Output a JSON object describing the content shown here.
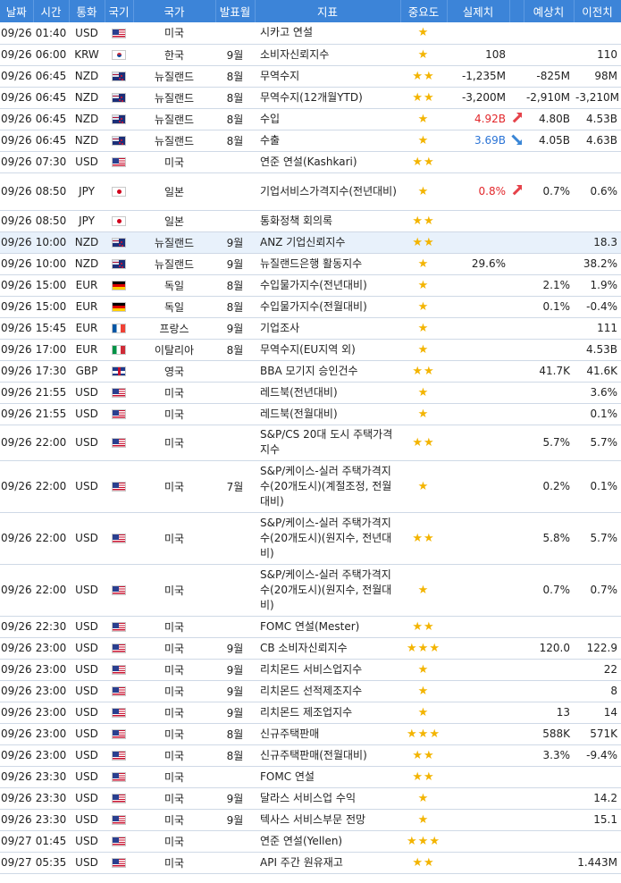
{
  "colors": {
    "header_bg": "#3c84d8",
    "star": "#f3b400",
    "up": "#e2272b",
    "down": "#2b74d6",
    "highlight_row": "#e8f1fb"
  },
  "header": [
    "날짜",
    "시간",
    "통화",
    "국기",
    "국가",
    "발표월",
    "지표",
    "중요도",
    "실제치",
    "",
    "예상치",
    "이전치"
  ],
  "rows": [
    {
      "date": "09/26",
      "time": "01:40",
      "cur": "USD",
      "flag": "us",
      "country": "미국",
      "period": "",
      "indicator": "시카고 연설",
      "stars": "★",
      "arrow": "",
      "actual": "",
      "forecast": "",
      "previous": ""
    },
    {
      "date": "09/26",
      "time": "06:00",
      "cur": "KRW",
      "flag": "kr",
      "country": "한국",
      "period": "9월",
      "indicator": "소비자신뢰지수",
      "stars": "★",
      "arrow": "",
      "actual": "108",
      "forecast": "",
      "previous": "110"
    },
    {
      "date": "09/26",
      "time": "06:45",
      "cur": "NZD",
      "flag": "nz",
      "country": "뉴질랜드",
      "period": "8월",
      "indicator": "무역수지",
      "stars": "★★",
      "arrow": "",
      "actual": "-1,235M",
      "forecast": "-825M",
      "previous": "98M"
    },
    {
      "date": "09/26",
      "time": "06:45",
      "cur": "NZD",
      "flag": "nz",
      "country": "뉴질랜드",
      "period": "8월",
      "indicator": "무역수지(12개월YTD)",
      "stars": "★★",
      "arrow": "",
      "actual": "-3,200M",
      "forecast": "-2,910M",
      "previous": "-3,210M"
    },
    {
      "date": "09/26",
      "time": "06:45",
      "cur": "NZD",
      "flag": "nz",
      "country": "뉴질랜드",
      "period": "8월",
      "indicator": "수입",
      "stars": "★",
      "arrow": "up",
      "actual": "4.92B",
      "forecast": "4.80B",
      "previous": "4.53B"
    },
    {
      "date": "09/26",
      "time": "06:45",
      "cur": "NZD",
      "flag": "nz",
      "country": "뉴질랜드",
      "period": "8월",
      "indicator": "수출",
      "stars": "★",
      "arrow": "down",
      "actual": "3.69B",
      "forecast": "4.05B",
      "previous": "4.63B"
    },
    {
      "date": "09/26",
      "time": "07:30",
      "cur": "USD",
      "flag": "us",
      "country": "미국",
      "period": "",
      "indicator": "연준 연설(Kashkari)",
      "stars": "★★",
      "arrow": "",
      "actual": "",
      "forecast": "",
      "previous": ""
    },
    {
      "date": "09/26",
      "time": "08:50",
      "cur": "JPY",
      "flag": "jp",
      "country": "일본",
      "period": "",
      "indicator": "기업서비스가격지수(전년대비)",
      "stars": "★",
      "arrow": "up",
      "actual": "0.8%",
      "forecast": "0.7%",
      "previous": "0.6%"
    },
    {
      "date": "09/26",
      "time": "08:50",
      "cur": "JPY",
      "flag": "jp",
      "country": "일본",
      "period": "",
      "indicator": "통화정책 회의록",
      "stars": "★★",
      "arrow": "",
      "actual": "",
      "forecast": "",
      "previous": ""
    },
    {
      "date": "09/26",
      "time": "10:00",
      "cur": "NZD",
      "flag": "nz",
      "country": "뉴질랜드",
      "period": "9월",
      "indicator": "ANZ 기업신뢰지수",
      "stars": "★★",
      "arrow": "",
      "actual": "",
      "forecast": "",
      "previous": "18.3",
      "highlight": true
    },
    {
      "date": "09/26",
      "time": "10:00",
      "cur": "NZD",
      "flag": "nz",
      "country": "뉴질랜드",
      "period": "9월",
      "indicator": "뉴질랜드은행 활동지수",
      "stars": "★",
      "arrow": "",
      "actual": "29.6%",
      "forecast": "",
      "previous": "38.2%"
    },
    {
      "date": "09/26",
      "time": "15:00",
      "cur": "EUR",
      "flag": "de",
      "country": "독일",
      "period": "8월",
      "indicator": "수입물가지수(전년대비)",
      "stars": "★",
      "arrow": "",
      "actual": "",
      "forecast": "2.1%",
      "previous": "1.9%"
    },
    {
      "date": "09/26",
      "time": "15:00",
      "cur": "EUR",
      "flag": "de",
      "country": "독일",
      "period": "8월",
      "indicator": "수입물가지수(전월대비)",
      "stars": "★",
      "arrow": "",
      "actual": "",
      "forecast": "0.1%",
      "previous": "-0.4%"
    },
    {
      "date": "09/26",
      "time": "15:45",
      "cur": "EUR",
      "flag": "fr",
      "country": "프랑스",
      "period": "9월",
      "indicator": "기업조사",
      "stars": "★",
      "arrow": "",
      "actual": "",
      "forecast": "",
      "previous": "111"
    },
    {
      "date": "09/26",
      "time": "17:00",
      "cur": "EUR",
      "flag": "it",
      "country": "이탈리아",
      "period": "8월",
      "indicator": "무역수지(EU지역 외)",
      "stars": "★",
      "arrow": "",
      "actual": "",
      "forecast": "",
      "previous": "4.53B"
    },
    {
      "date": "09/26",
      "time": "17:30",
      "cur": "GBP",
      "flag": "gb",
      "country": "영국",
      "period": "",
      "indicator": "BBA 모기지 승인건수",
      "stars": "★★",
      "arrow": "",
      "actual": "",
      "forecast": "41.7K",
      "previous": "41.6K"
    },
    {
      "date": "09/26",
      "time": "21:55",
      "cur": "USD",
      "flag": "us",
      "country": "미국",
      "period": "",
      "indicator": "레드북(전년대비)",
      "stars": "★",
      "arrow": "",
      "actual": "",
      "forecast": "",
      "previous": "3.6%"
    },
    {
      "date": "09/26",
      "time": "21:55",
      "cur": "USD",
      "flag": "us",
      "country": "미국",
      "period": "",
      "indicator": "레드북(전월대비)",
      "stars": "★",
      "arrow": "",
      "actual": "",
      "forecast": "",
      "previous": "0.1%"
    },
    {
      "date": "09/26",
      "time": "22:00",
      "cur": "USD",
      "flag": "us",
      "country": "미국",
      "period": "",
      "indicator": "S&P/CS 20대 도시 주택가격지수",
      "stars": "★★",
      "arrow": "",
      "actual": "",
      "forecast": "5.7%",
      "previous": "5.7%"
    },
    {
      "date": "09/26",
      "time": "22:00",
      "cur": "USD",
      "flag": "us",
      "country": "미국",
      "period": "7월",
      "indicator": "S&P/케이스-실러 주택가격지수(20개도시)(계절조정, 전월대비)",
      "stars": "★",
      "arrow": "",
      "actual": "",
      "forecast": "0.2%",
      "previous": "0.1%"
    },
    {
      "date": "09/26",
      "time": "22:00",
      "cur": "USD",
      "flag": "us",
      "country": "미국",
      "period": "",
      "indicator": "S&P/케이스-실러 주택가격지수(20개도시)(원지수, 전년대비)",
      "stars": "★★",
      "arrow": "",
      "actual": "",
      "forecast": "5.8%",
      "previous": "5.7%"
    },
    {
      "date": "09/26",
      "time": "22:00",
      "cur": "USD",
      "flag": "us",
      "country": "미국",
      "period": "",
      "indicator": "S&P/케이스-실러 주택가격지수(20개도시)(원지수, 전월대비)",
      "stars": "★",
      "arrow": "",
      "actual": "",
      "forecast": "0.7%",
      "previous": "0.7%"
    },
    {
      "date": "09/26",
      "time": "22:30",
      "cur": "USD",
      "flag": "us",
      "country": "미국",
      "period": "",
      "indicator": "FOMC 연설(Mester)",
      "stars": "★★",
      "arrow": "",
      "actual": "",
      "forecast": "",
      "previous": ""
    },
    {
      "date": "09/26",
      "time": "23:00",
      "cur": "USD",
      "flag": "us",
      "country": "미국",
      "period": "9월",
      "indicator": "CB 소비자신뢰지수",
      "stars": "★★★",
      "arrow": "",
      "actual": "",
      "forecast": "120.0",
      "previous": "122.9"
    },
    {
      "date": "09/26",
      "time": "23:00",
      "cur": "USD",
      "flag": "us",
      "country": "미국",
      "period": "9월",
      "indicator": "리치몬드 서비스업지수",
      "stars": "★",
      "arrow": "",
      "actual": "",
      "forecast": "",
      "previous": "22"
    },
    {
      "date": "09/26",
      "time": "23:00",
      "cur": "USD",
      "flag": "us",
      "country": "미국",
      "period": "9월",
      "indicator": "리치몬드 선적제조지수",
      "stars": "★",
      "arrow": "",
      "actual": "",
      "forecast": "",
      "previous": "8"
    },
    {
      "date": "09/26",
      "time": "23:00",
      "cur": "USD",
      "flag": "us",
      "country": "미국",
      "period": "9월",
      "indicator": "리치몬드 제조업지수",
      "stars": "★",
      "arrow": "",
      "actual": "",
      "forecast": "13",
      "previous": "14"
    },
    {
      "date": "09/26",
      "time": "23:00",
      "cur": "USD",
      "flag": "us",
      "country": "미국",
      "period": "8월",
      "indicator": "신규주택판매",
      "stars": "★★★",
      "arrow": "",
      "actual": "",
      "forecast": "588K",
      "previous": "571K"
    },
    {
      "date": "09/26",
      "time": "23:00",
      "cur": "USD",
      "flag": "us",
      "country": "미국",
      "period": "8월",
      "indicator": "신규주택판매(전월대비)",
      "stars": "★★",
      "arrow": "",
      "actual": "",
      "forecast": "3.3%",
      "previous": "-9.4%"
    },
    {
      "date": "09/26",
      "time": "23:30",
      "cur": "USD",
      "flag": "us",
      "country": "미국",
      "period": "",
      "indicator": "FOMC 연설",
      "stars": "★★",
      "arrow": "",
      "actual": "",
      "forecast": "",
      "previous": ""
    },
    {
      "date": "09/26",
      "time": "23:30",
      "cur": "USD",
      "flag": "us",
      "country": "미국",
      "period": "9월",
      "indicator": "달라스 서비스업 수익",
      "stars": "★",
      "arrow": "",
      "actual": "",
      "forecast": "",
      "previous": "14.2"
    },
    {
      "date": "09/26",
      "time": "23:30",
      "cur": "USD",
      "flag": "us",
      "country": "미국",
      "period": "9월",
      "indicator": "텍사스 서비스부문 전망",
      "stars": "★",
      "arrow": "",
      "actual": "",
      "forecast": "",
      "previous": "15.1"
    },
    {
      "date": "09/27",
      "time": "01:45",
      "cur": "USD",
      "flag": "us",
      "country": "미국",
      "period": "",
      "indicator": "연준 연설(Yellen)",
      "stars": "★★★",
      "arrow": "",
      "actual": "",
      "forecast": "",
      "previous": ""
    },
    {
      "date": "09/27",
      "time": "05:35",
      "cur": "USD",
      "flag": "us",
      "country": "미국",
      "period": "",
      "indicator": "API 주간 원유재고",
      "stars": "★★",
      "arrow": "",
      "actual": "",
      "forecast": "",
      "previous": "1.443M"
    }
  ]
}
